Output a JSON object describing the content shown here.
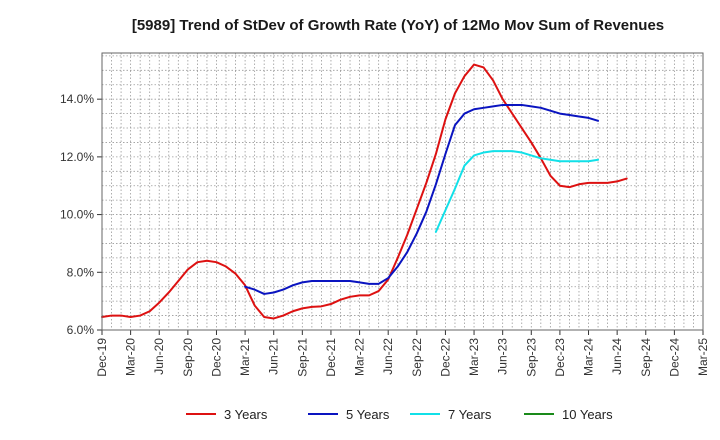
{
  "chart_data": {
    "type": "line",
    "title": "[5989]  Trend of StDev of Growth Rate (YoY) of 12Mo Mov Sum of Revenues",
    "xlabel": "",
    "ylabel": "",
    "x_ticks": [
      "Dec-19",
      "Mar-20",
      "Jun-20",
      "Sep-20",
      "Dec-20",
      "Mar-21",
      "Jun-21",
      "Sep-21",
      "Dec-21",
      "Mar-22",
      "Jun-22",
      "Sep-22",
      "Dec-22",
      "Mar-23",
      "Jun-23",
      "Sep-23",
      "Dec-23",
      "Mar-24",
      "Jun-24",
      "Sep-24",
      "Dec-24",
      "Mar-25"
    ],
    "y_ticks": [
      "6.0%",
      "8.0%",
      "10.0%",
      "12.0%",
      "14.0%"
    ],
    "ylim": [
      6.0,
      15.6
    ],
    "grid": true,
    "legend_position": "bottom",
    "series": [
      {
        "name": "3 Years",
        "color": "#dd1111",
        "start_index": 0,
        "values": [
          6.45,
          6.5,
          6.5,
          6.45,
          6.5,
          6.65,
          6.95,
          7.3,
          7.7,
          8.1,
          8.35,
          8.4,
          8.35,
          8.2,
          7.95,
          7.55,
          6.85,
          6.45,
          6.4,
          6.5,
          6.65,
          6.75,
          6.8,
          6.82,
          6.9,
          7.05,
          7.15,
          7.2,
          7.2,
          7.35,
          7.75,
          8.5,
          9.3,
          10.2,
          11.1,
          12.1,
          13.3,
          14.2,
          14.8,
          15.2,
          15.1,
          14.65,
          14.0,
          13.5,
          13.0,
          12.5,
          11.95,
          11.35,
          11.0,
          10.95,
          11.05,
          11.1,
          11.1,
          11.1,
          11.15,
          11.25
        ]
      },
      {
        "name": "5 Years",
        "color": "#0a14c0",
        "start_index": 15,
        "values": [
          7.5,
          7.4,
          7.25,
          7.3,
          7.4,
          7.55,
          7.65,
          7.7,
          7.7,
          7.7,
          7.7,
          7.7,
          7.65,
          7.6,
          7.6,
          7.8,
          8.2,
          8.7,
          9.35,
          10.1,
          11.05,
          12.1,
          13.1,
          13.5,
          13.65,
          13.7,
          13.75,
          13.8,
          13.8,
          13.8,
          13.75,
          13.7,
          13.6,
          13.5,
          13.45,
          13.4,
          13.35,
          13.25
        ]
      },
      {
        "name": "7 Years",
        "color": "#11e0e8",
        "start_index": 35,
        "values": [
          9.4,
          10.15,
          10.9,
          11.7,
          12.05,
          12.15,
          12.2,
          12.2,
          12.2,
          12.15,
          12.05,
          11.95,
          11.9,
          11.85,
          11.85,
          11.85,
          11.85,
          11.9
        ]
      },
      {
        "name": "10 Years",
        "color": "#1a8a1a",
        "start_index": 0,
        "values": []
      }
    ]
  }
}
